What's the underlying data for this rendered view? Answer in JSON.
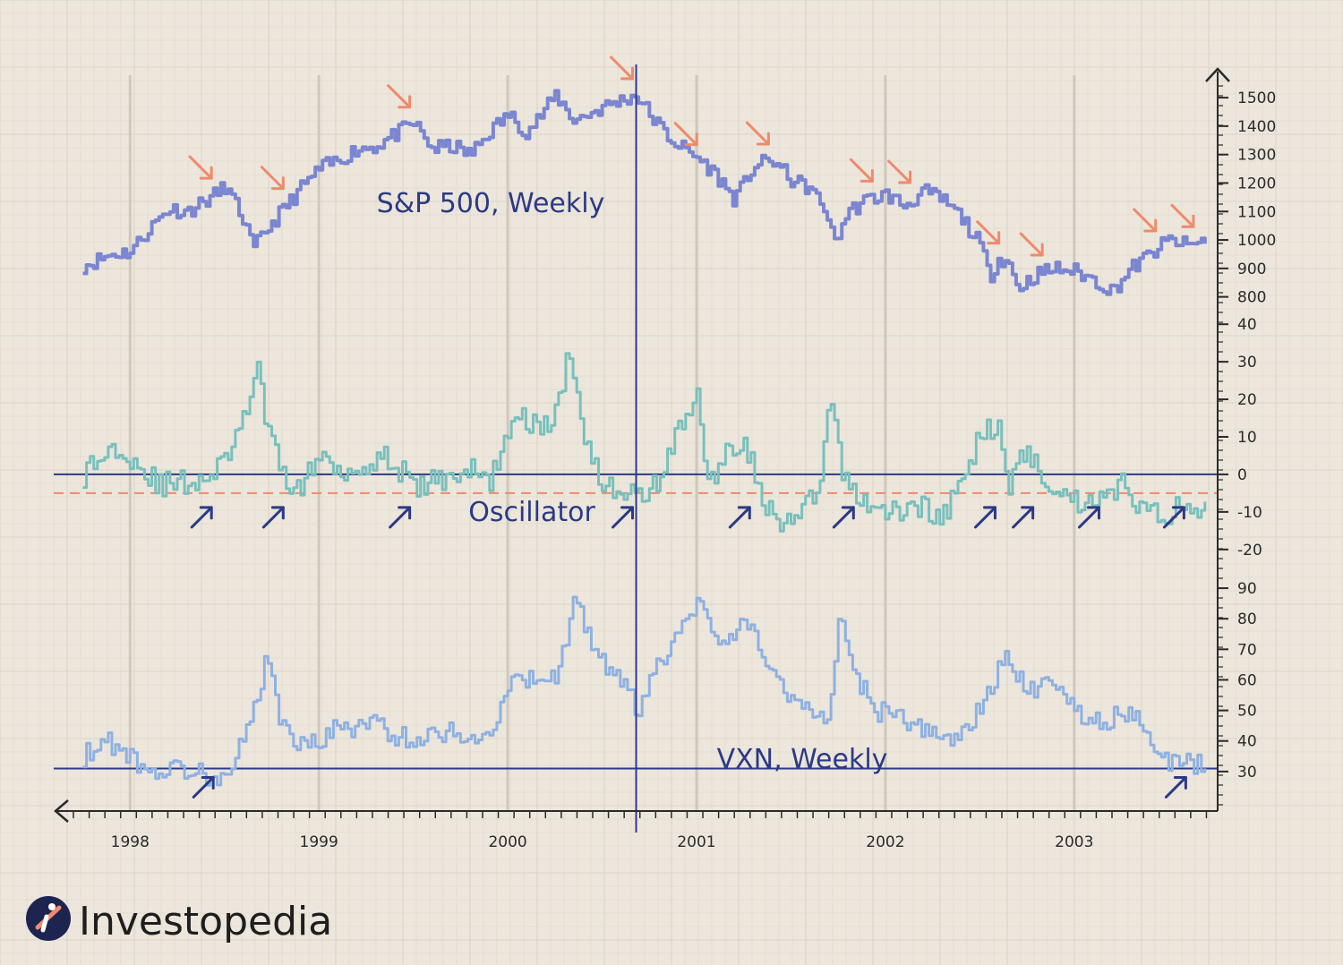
{
  "brand": {
    "name": "Investopedia",
    "logo_icon": "investopedia-logo-icon"
  },
  "colors": {
    "background": "#ece6dc",
    "grid": "#dcd4c7",
    "axis": "#2a2a2a",
    "navy": "#2b3a86",
    "sp500": "#7b86d1",
    "oscillator": "#79c0bd",
    "vxn": "#8fb1e2",
    "sell_arrow": "#ef8a6c",
    "buy_arrow": "#2b3a86",
    "threshold": "#ef8a6c"
  },
  "chart_data": [
    {
      "id": "sp500",
      "type": "line",
      "title": "S&P 500, Weekly",
      "yticks": [
        800,
        900,
        1000,
        1100,
        1200,
        1300,
        1400,
        1500
      ],
      "ylim": [
        780,
        1560
      ],
      "x": [
        1997.75,
        1997.9,
        1998.0,
        1998.1,
        1998.2,
        1998.3,
        1998.45,
        1998.5,
        1998.6,
        1998.65,
        1998.7,
        1998.8,
        1998.9,
        1999.0,
        1999.1,
        1999.2,
        1999.3,
        1999.4,
        1999.5,
        1999.6,
        1999.7,
        1999.8,
        1999.9,
        2000.0,
        2000.1,
        2000.2,
        2000.25,
        2000.35,
        2000.45,
        2000.55,
        2000.68,
        2000.75,
        2000.85,
        2000.95,
        2001.0,
        2001.1,
        2001.2,
        2001.25,
        2001.3,
        2001.4,
        2001.5,
        2001.6,
        2001.7,
        2001.72,
        2001.8,
        2001.9,
        2002.0,
        2002.1,
        2002.2,
        2002.3,
        2002.4,
        2002.5,
        2002.55,
        2002.6,
        2002.65,
        2002.7,
        2002.8,
        2002.9,
        2003.0,
        2003.1,
        2003.2,
        2003.3,
        2003.4,
        2003.5,
        2003.6,
        2003.7
      ],
      "y": [
        910,
        950,
        960,
        1040,
        1110,
        1100,
        1160,
        1190,
        1070,
        960,
        1020,
        1100,
        1180,
        1250,
        1280,
        1320,
        1330,
        1370,
        1410,
        1320,
        1330,
        1300,
        1380,
        1440,
        1380,
        1460,
        1510,
        1420,
        1450,
        1480,
        1510,
        1440,
        1360,
        1310,
        1290,
        1230,
        1140,
        1200,
        1260,
        1280,
        1210,
        1180,
        1080,
        980,
        1100,
        1140,
        1160,
        1120,
        1170,
        1140,
        1080,
        980,
        870,
        940,
        920,
        830,
        880,
        900,
        890,
        860,
        820,
        900,
        950,
        1000,
        980,
        1000
      ],
      "sell_signals_x": [
        1998.45,
        1998.83,
        1999.5,
        2000.68,
        2001.02,
        2001.4,
        2001.95,
        2002.15,
        2002.62,
        2002.85,
        2003.45,
        2003.65
      ]
    },
    {
      "id": "oscillator",
      "type": "line",
      "title": "Oscillator",
      "yticks": [
        -20,
        -10,
        0,
        10,
        20,
        30,
        40
      ],
      "ylim": [
        -21,
        41
      ],
      "zero_line": 0,
      "threshold": -5,
      "x": [
        1997.75,
        1997.85,
        1997.95,
        1998.05,
        1998.15,
        1998.3,
        1998.45,
        1998.5,
        1998.58,
        1998.62,
        1998.68,
        1998.72,
        1998.8,
        1998.9,
        1999.0,
        1999.1,
        1999.2,
        1999.3,
        1999.4,
        1999.5,
        1999.6,
        1999.7,
        1999.8,
        1999.9,
        2000.0,
        2000.1,
        2000.2,
        2000.28,
        2000.32,
        2000.4,
        2000.5,
        2000.6,
        2000.68,
        2000.75,
        2000.85,
        2000.95,
        2001.0,
        2001.05,
        2001.15,
        2001.25,
        2001.35,
        2001.45,
        2001.55,
        2001.65,
        2001.7,
        2001.75,
        2001.8,
        2001.9,
        2002.0,
        2002.1,
        2002.2,
        2002.3,
        2002.4,
        2002.5,
        2002.6,
        2002.65,
        2002.75,
        2002.85,
        2002.95,
        2003.05,
        2003.15,
        2003.25,
        2003.35,
        2003.45,
        2003.55,
        2003.65,
        2003.7
      ],
      "y": [
        0,
        5,
        8,
        2,
        -3,
        -2,
        0,
        5,
        10,
        20,
        28,
        12,
        0,
        -4,
        5,
        2,
        1,
        5,
        3,
        -4,
        -2,
        0,
        1,
        -2,
        12,
        15,
        12,
        20,
        35,
        12,
        -3,
        -4,
        -6,
        -5,
        5,
        18,
        20,
        -3,
        5,
        10,
        -8,
        -15,
        -10,
        -5,
        22,
        5,
        -3,
        -8,
        -10,
        -10,
        -8,
        -12,
        -2,
        10,
        15,
        -3,
        7,
        -2,
        -5,
        -8,
        -5,
        -3,
        -8,
        -12,
        -8,
        -10,
        -6
      ],
      "buy_signals_x": [
        1998.45,
        1998.83,
        1999.5,
        2000.68,
        2001.3,
        2001.85,
        2002.6,
        2002.8,
        2003.15,
        2003.6
      ]
    },
    {
      "id": "vxn",
      "type": "line",
      "title": "VXN, Weekly",
      "yticks": [
        30,
        40,
        50,
        60,
        70,
        80,
        90
      ],
      "ylim": [
        20,
        95
      ],
      "baseline": 31,
      "x": [
        1997.75,
        1997.85,
        1997.95,
        1998.05,
        1998.15,
        1998.3,
        1998.45,
        1998.5,
        1998.6,
        1998.68,
        1998.72,
        1998.8,
        1998.9,
        1999.0,
        1999.1,
        1999.2,
        1999.3,
        1999.4,
        1999.5,
        1999.6,
        1999.7,
        1999.8,
        1999.9,
        2000.0,
        2000.1,
        2000.2,
        2000.28,
        2000.35,
        2000.45,
        2000.55,
        2000.65,
        2000.68,
        2000.75,
        2000.85,
        2000.95,
        2001.0,
        2001.1,
        2001.2,
        2001.3,
        2001.4,
        2001.5,
        2001.6,
        2001.7,
        2001.75,
        2001.85,
        2001.95,
        2002.05,
        2002.15,
        2002.25,
        2002.35,
        2002.45,
        2002.55,
        2002.65,
        2002.75,
        2002.85,
        2002.95,
        2003.05,
        2003.15,
        2003.25,
        2003.35,
        2003.45,
        2003.55,
        2003.7
      ],
      "y": [
        35,
        40,
        38,
        32,
        30,
        31,
        28,
        30,
        40,
        55,
        70,
        45,
        38,
        40,
        45,
        44,
        46,
        42,
        40,
        42,
        44,
        40,
        42,
        58,
        60,
        58,
        65,
        88,
        70,
        62,
        55,
        45,
        60,
        70,
        80,
        85,
        72,
        76,
        78,
        60,
        55,
        50,
        48,
        80,
        60,
        50,
        48,
        45,
        42,
        40,
        45,
        58,
        68,
        55,
        62,
        55,
        48,
        45,
        50,
        46,
        34,
        32,
        33
      ],
      "buy_signals_x": [
        1998.45,
        2003.6
      ]
    },
    {
      "id": "time-axis",
      "type": "line",
      "x_tick_labels": [
        "1998",
        "1999",
        "2000",
        "2001",
        "2002",
        "2003"
      ],
      "xlim": [
        1997.7,
        2003.75
      ],
      "highlight_x": 2000.68
    }
  ]
}
